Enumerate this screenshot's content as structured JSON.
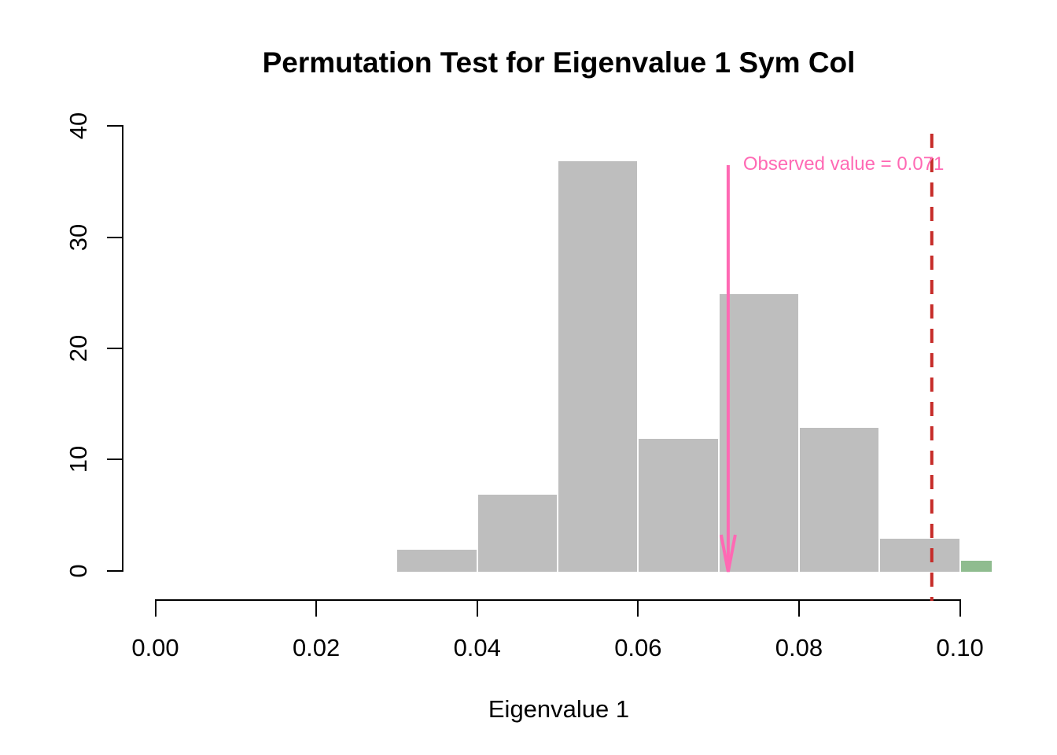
{
  "chart_data": {
    "type": "bar",
    "subtype": "histogram",
    "title": "Permutation Test for Eigenvalue 1 Sym Col",
    "xlabel": "Eigenvalue 1",
    "ylabel": "",
    "xlim": [
      0,
      0.104
    ],
    "ylim": [
      0,
      40
    ],
    "grid": false,
    "legend": "none",
    "x_ticks": [
      {
        "value": 0.0,
        "label": "0.00"
      },
      {
        "value": 0.02,
        "label": "0.02"
      },
      {
        "value": 0.04,
        "label": "0.04"
      },
      {
        "value": 0.06,
        "label": "0.06"
      },
      {
        "value": 0.08,
        "label": "0.08"
      },
      {
        "value": 0.1,
        "label": "0.10"
      }
    ],
    "y_ticks": [
      {
        "value": 0,
        "label": "0"
      },
      {
        "value": 10,
        "label": "10"
      },
      {
        "value": 20,
        "label": "20"
      },
      {
        "value": 30,
        "label": "30"
      },
      {
        "value": 40,
        "label": "40"
      }
    ],
    "bins": [
      {
        "from": 0.03,
        "to": 0.04,
        "count": 2,
        "color": "#BEBEBE"
      },
      {
        "from": 0.04,
        "to": 0.05,
        "count": 7,
        "color": "#BEBEBE"
      },
      {
        "from": 0.05,
        "to": 0.06,
        "count": 37,
        "color": "#BEBEBE"
      },
      {
        "from": 0.06,
        "to": 0.07,
        "count": 12,
        "color": "#BEBEBE"
      },
      {
        "from": 0.07,
        "to": 0.08,
        "count": 25,
        "color": "#BEBEBE"
      },
      {
        "from": 0.08,
        "to": 0.09,
        "count": 13,
        "color": "#BEBEBE"
      },
      {
        "from": 0.09,
        "to": 0.1,
        "count": 3,
        "color": "#BEBEBE"
      },
      {
        "from": 0.1,
        "to": 0.104,
        "count": 1,
        "color": "#8FBC8F"
      }
    ],
    "observed_marker": {
      "value": 0.071,
      "label": "Observed value = 0.071",
      "color": "#FF69B4"
    },
    "critical_line": {
      "value": 0.0965,
      "color": "#C62B28",
      "style": "dashed",
      "dash": [
        18,
        13
      ]
    },
    "colors": {
      "bar": "#BEBEBE",
      "bar_border": "#FFFFFF",
      "extreme_bar": "#8FBC8F",
      "observed": "#FF69B4",
      "critical": "#C62B28",
      "axis": "#000000",
      "background": "#FFFFFF"
    }
  }
}
